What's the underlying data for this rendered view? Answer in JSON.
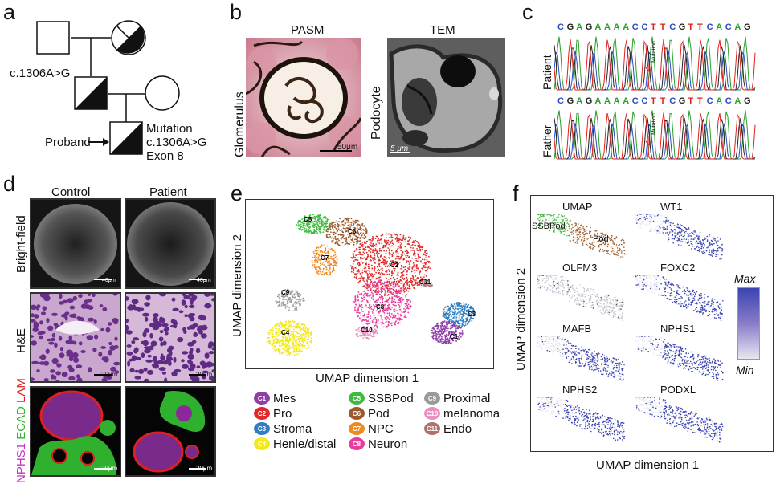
{
  "panels": {
    "a": {
      "label": "a",
      "father_genotype": "c.1306A>G",
      "proband_label": "Proband",
      "mutation_lines": [
        "Mutation",
        "c.1306A>G",
        "Exon 8"
      ]
    },
    "b": {
      "label": "b",
      "left_title": "PASM",
      "right_title": "TEM",
      "left_ylabel": "Glomerulus",
      "right_ylabel": "Podocyte",
      "left_scale": "50μm",
      "right_scale": "5 μm"
    },
    "c": {
      "label": "c",
      "sequence": [
        "C",
        "G",
        "A",
        "G",
        "A",
        "A",
        "A",
        "A",
        "C",
        "C",
        "T",
        "T",
        "C",
        "G",
        "T",
        "T",
        "C",
        "A",
        "C",
        "A",
        "G"
      ],
      "row1_label": "Patient",
      "row2_label": "Father",
      "mutation_tag": "Mutation"
    },
    "d": {
      "label": "d",
      "col_control": "Control",
      "col_patient": "Patient",
      "row_brightfield": "Bright-field",
      "row_he": "H&E",
      "row_stain_nphs1": "NPHS1",
      "row_stain_ecad": "ECAD",
      "row_stain_lam": "LAM",
      "scale_40": "40μm",
      "scale_20": "20μm"
    },
    "e": {
      "label": "e",
      "xlabel": "UMAP dimension 1",
      "ylabel": "UMAP dimension 2",
      "clusters": [
        {
          "id": "C1",
          "name": "Mes",
          "color": "#8e3fa6"
        },
        {
          "id": "C2",
          "name": "Pro",
          "color": "#e02a2a"
        },
        {
          "id": "C3",
          "name": "Stroma",
          "color": "#2f7fc1"
        },
        {
          "id": "C4",
          "name": "Henle/distal",
          "color": "#f2e81c"
        },
        {
          "id": "C5",
          "name": "SSBPod",
          "color": "#3dbb3d"
        },
        {
          "id": "C6",
          "name": "Pod",
          "color": "#9a5a2c"
        },
        {
          "id": "C7",
          "name": "NPC",
          "color": "#f2891c"
        },
        {
          "id": "C8",
          "name": "Neuron",
          "color": "#e83c9a"
        },
        {
          "id": "C9",
          "name": "Proximal",
          "color": "#9a9a9a"
        },
        {
          "id": "C10",
          "name": "melanoma",
          "color": "#e890c0"
        },
        {
          "id": "C11",
          "name": "Endo",
          "color": "#b07070"
        }
      ]
    },
    "f": {
      "label": "f",
      "xlabel": "UMAP dimension 1",
      "ylabel": "UMAP dimension 2",
      "panels": [
        "UMAP",
        "WT1",
        "OLFM3",
        "FOXC2",
        "MAFB",
        "NPHS1",
        "NPHS2",
        "PODXL"
      ],
      "umap_sub_labels": [
        "SSBPod",
        "Pod"
      ],
      "scale_max": "Max",
      "scale_min": "Min",
      "color_max": "#3b44b0",
      "color_min": "#e8e6f0"
    }
  }
}
